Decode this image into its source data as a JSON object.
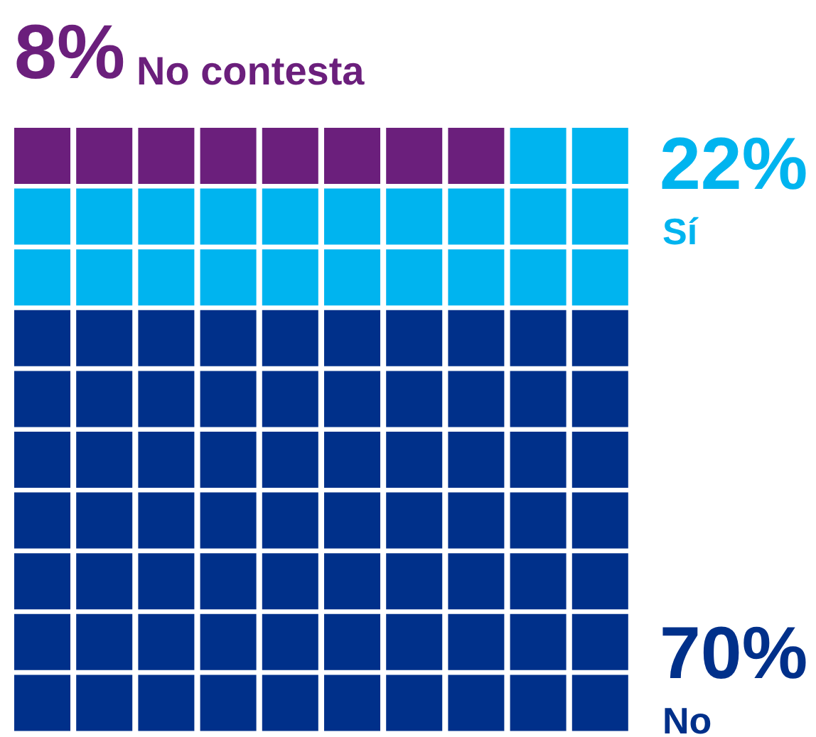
{
  "chart_data": {
    "type": "other",
    "categories": [
      "No contesta",
      "Sí",
      "No"
    ],
    "values": [
      8,
      22,
      70
    ],
    "colors": [
      "#6b1f7c",
      "#00b4ef",
      "#00308a"
    ],
    "value_labels": [
      "8%",
      "22%",
      "70%"
    ]
  }
}
